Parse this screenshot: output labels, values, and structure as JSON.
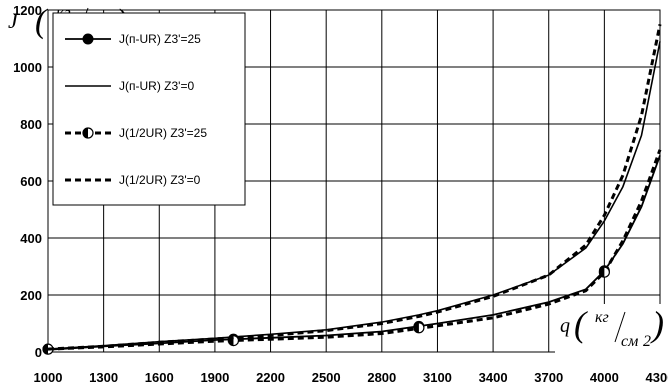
{
  "chart_data": {
    "type": "line",
    "title": "",
    "ylabel": {
      "symbol": "J",
      "num": "кг",
      "den": "см"
    },
    "xlabel": {
      "symbol": "q",
      "num": "кг",
      "den": "см",
      "exp": "2"
    },
    "ylim": [
      0,
      1200
    ],
    "y_ticks": [
      "0",
      "200",
      "400",
      "600",
      "800",
      "1000",
      "1200"
    ],
    "x_ticks": [
      "1000",
      "1300",
      "1600",
      "1900",
      "2200",
      "2500",
      "2800",
      "3100",
      "3400",
      "3700",
      "4000",
      "4300"
    ],
    "grid": true,
    "legend_position": "top-left",
    "series": [
      {
        "name": "J(п-UR) Z3'=25",
        "style": "solid-filled-circle",
        "x": [
          1000,
          1300,
          1600,
          1900,
          2200,
          2500,
          2800,
          3100,
          3400,
          3700,
          3900,
          4000,
          4100,
          4200,
          4300
        ],
        "y": [
          8,
          20,
          30,
          42,
          50,
          58,
          72,
          100,
          130,
          175,
          220,
          285,
          380,
          510,
          690
        ],
        "markers_x": [
          1000,
          2000,
          3000,
          4000
        ],
        "markers_y": [
          10,
          45,
          90,
          285
        ]
      },
      {
        "name": "J(п-UR) Z3'=0",
        "style": "solid",
        "x": [
          1000,
          1300,
          1600,
          1900,
          2200,
          2500,
          2800,
          3000,
          3100,
          3400,
          3700,
          3900,
          4000,
          4100,
          4200,
          4300
        ],
        "y": [
          10,
          22,
          36,
          48,
          62,
          78,
          105,
          130,
          145,
          200,
          270,
          365,
          460,
          580,
          760,
          1090
        ],
        "markers_x": [],
        "markers_y": []
      },
      {
        "name": "J(1/2UR) Z3'=25",
        "style": "dashed-half-circle",
        "x": [
          1000,
          1300,
          1600,
          1900,
          2200,
          2500,
          2800,
          3100,
          3400,
          3700,
          3900,
          4000,
          4100,
          4200,
          4300
        ],
        "y": [
          10,
          18,
          28,
          38,
          45,
          52,
          65,
          92,
          120,
          168,
          215,
          280,
          390,
          530,
          710
        ],
        "markers_x": [
          1000,
          2000,
          3000,
          4000
        ],
        "markers_y": [
          10,
          40,
          85,
          280
        ]
      },
      {
        "name": "J(1/2UR) Z3'=0",
        "style": "dashed",
        "x": [
          1000,
          1300,
          1600,
          1900,
          2200,
          2500,
          2800,
          3000,
          3100,
          3400,
          3700,
          3900,
          4000,
          4100,
          4200,
          4300
        ],
        "y": [
          10,
          20,
          34,
          46,
          58,
          75,
          100,
          125,
          140,
          195,
          270,
          375,
          480,
          620,
          830,
          1150
        ],
        "markers_x": [],
        "markers_y": []
      }
    ]
  }
}
